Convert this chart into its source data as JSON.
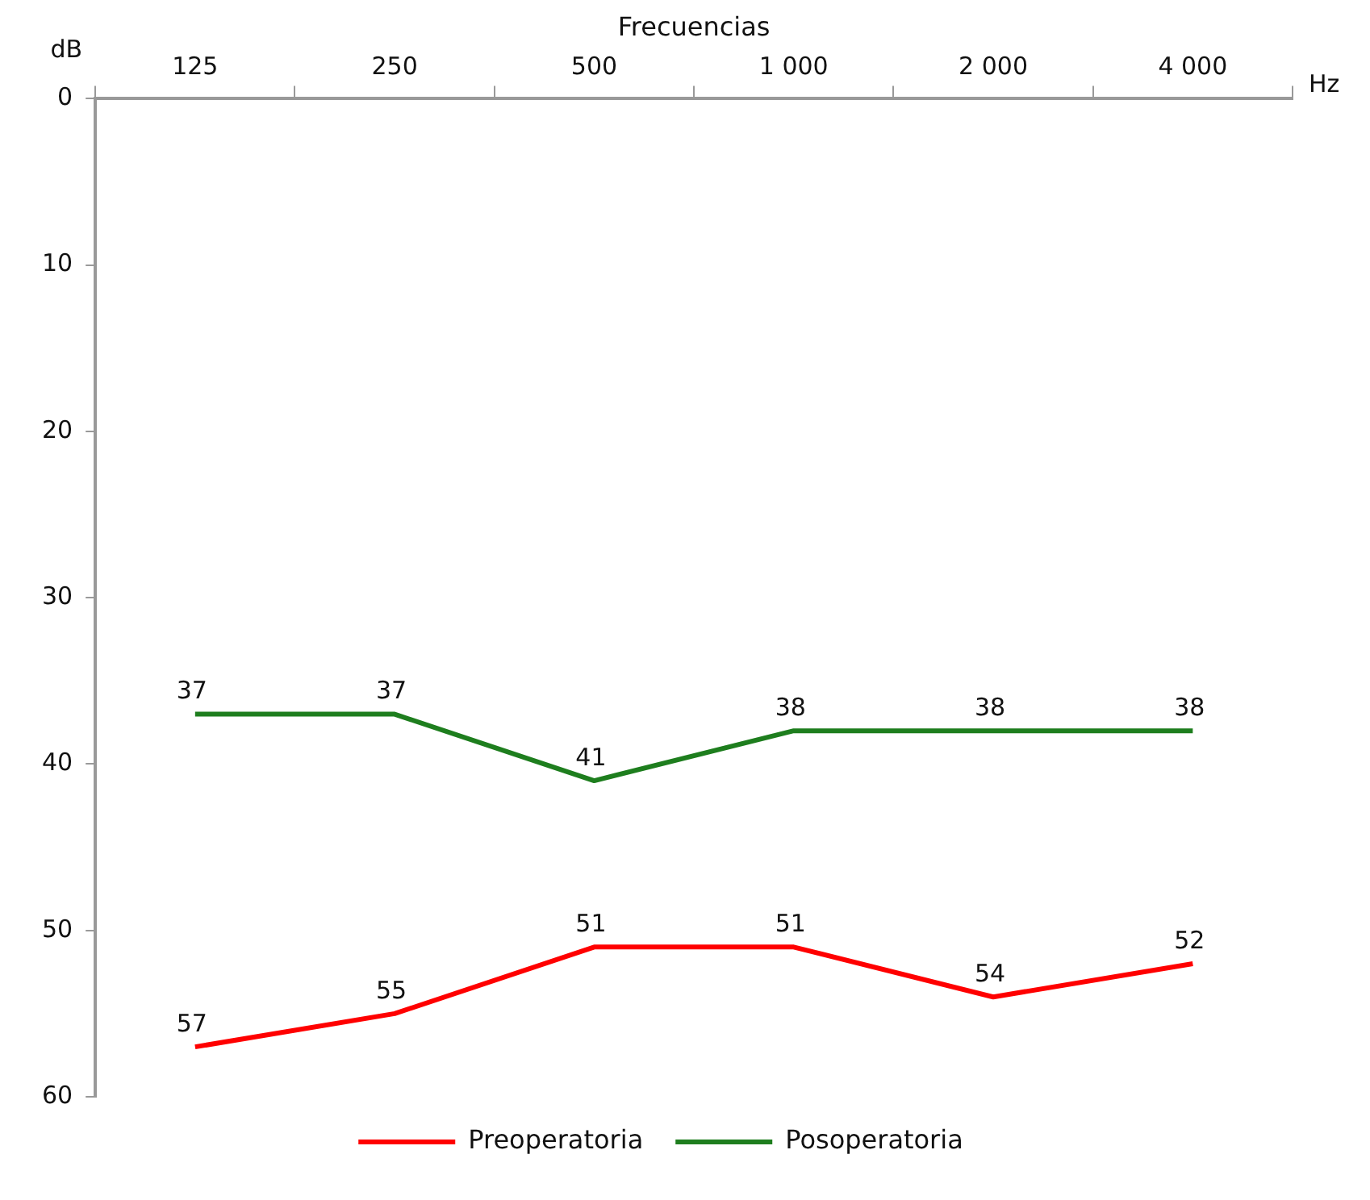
{
  "chart_data": {
    "type": "line",
    "xlabel": "Frecuencias",
    "ylabel": "dB",
    "annotations": [
      "Hz"
    ],
    "categories": [
      "125",
      "250",
      "500",
      "1 000",
      "2 000",
      "4 000"
    ],
    "series": [
      {
        "name": "Preoperatoria",
        "color": "#ff0000",
        "values": [
          57,
          55,
          51,
          51,
          54,
          52
        ]
      },
      {
        "name": "Posoperatoria",
        "color": "#1e7e1e",
        "values": [
          37,
          37,
          41,
          38,
          38,
          38
        ]
      }
    ],
    "ylim": [
      60,
      0
    ],
    "yticks": [
      0,
      10,
      20,
      30,
      40,
      50,
      60
    ],
    "grid": false,
    "legend": "bottom",
    "data_labels": true,
    "marker": "none",
    "line_style": "solid"
  }
}
